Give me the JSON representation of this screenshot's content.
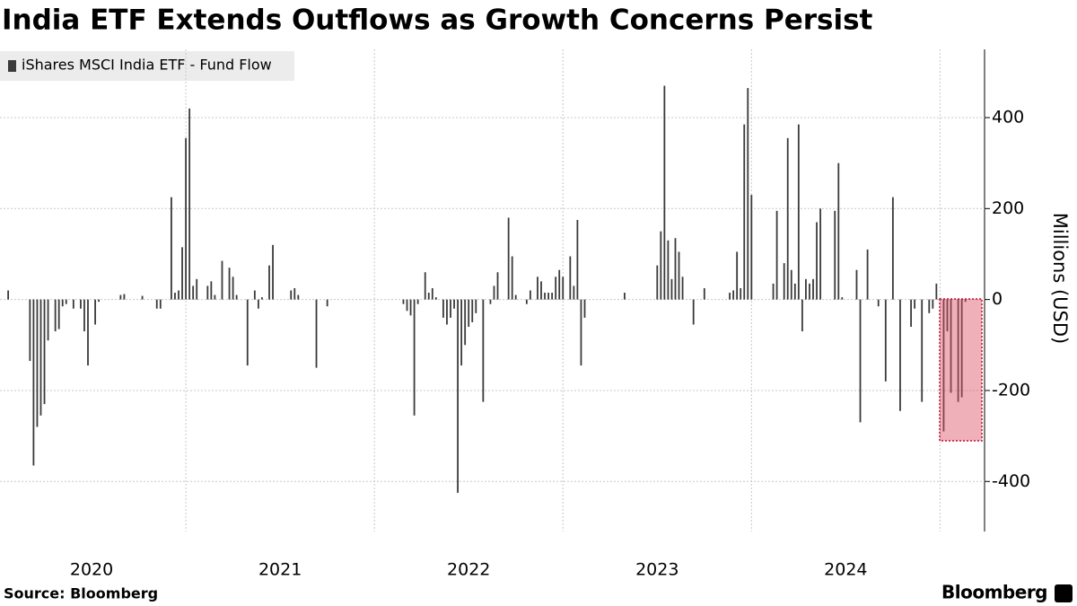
{
  "chart_data": {
    "type": "bar",
    "title": "India ETF Extends Outflows as Growth Concerns Persist",
    "y_label": "Millions (USD)",
    "source": "Source:  Bloomberg",
    "brand": "Bloomberg",
    "series": [
      {
        "name": "iShares MSCI India ETF - Fund Flow",
        "color": "#3a3a3a",
        "values": [
          0,
          0,
          0,
          20,
          0,
          0,
          0,
          0,
          0,
          -135,
          -365,
          -280,
          -255,
          -230,
          -90,
          0,
          -70,
          -65,
          -15,
          -10,
          0,
          -20,
          0,
          -20,
          -70,
          -145,
          0,
          -55,
          -5,
          0,
          0,
          0,
          0,
          0,
          10,
          12,
          0,
          0,
          0,
          0,
          8,
          0,
          0,
          0,
          -20,
          -20,
          0,
          0,
          225,
          15,
          20,
          115,
          355,
          420,
          30,
          45,
          0,
          0,
          30,
          40,
          10,
          0,
          85,
          0,
          70,
          50,
          10,
          0,
          0,
          -145,
          0,
          20,
          -20,
          5,
          0,
          75,
          120,
          0,
          0,
          0,
          0,
          20,
          25,
          10,
          0,
          0,
          0,
          0,
          -150,
          0,
          0,
          -15,
          0,
          0,
          0,
          0,
          0,
          0,
          0,
          0,
          0,
          0,
          0,
          0,
          0,
          0,
          0,
          0,
          0,
          0,
          0,
          0,
          -10,
          -25,
          -35,
          -255,
          -10,
          0,
          60,
          15,
          25,
          5,
          0,
          -40,
          -55,
          -40,
          -20,
          -425,
          -145,
          -100,
          -60,
          -50,
          -30,
          0,
          -225,
          0,
          -10,
          30,
          60,
          0,
          0,
          180,
          95,
          10,
          0,
          0,
          -10,
          20,
          0,
          50,
          40,
          15,
          15,
          15,
          50,
          65,
          50,
          0,
          95,
          30,
          175,
          -145,
          -40,
          0,
          0,
          0,
          0,
          0,
          0,
          0,
          0,
          0,
          0,
          15,
          0,
          0,
          0,
          0,
          0,
          0,
          0,
          0,
          75,
          150,
          470,
          130,
          45,
          135,
          105,
          50,
          0,
          0,
          -55,
          0,
          0,
          25,
          0,
          0,
          0,
          0,
          0,
          0,
          15,
          20,
          105,
          25,
          385,
          465,
          230,
          0,
          0,
          0,
          0,
          0,
          35,
          195,
          0,
          80,
          355,
          65,
          35,
          385,
          -70,
          45,
          35,
          45,
          170,
          200,
          0,
          0,
          0,
          195,
          300,
          5,
          0,
          0,
          0,
          65,
          -270,
          0,
          110,
          0,
          0,
          -15,
          0,
          -180,
          0,
          225,
          0,
          -245,
          0,
          0,
          -60,
          -20,
          0,
          -225,
          0,
          -30,
          -20,
          35,
          0,
          -290,
          -70,
          -205,
          0,
          -225,
          -215,
          -5
        ]
      }
    ],
    "categories": [
      null,
      null,
      null,
      null,
      null,
      null,
      null,
      null,
      null,
      null,
      null,
      null,
      null,
      null,
      null,
      null,
      null,
      null,
      null,
      null,
      null,
      null,
      null,
      null,
      null,
      null,
      "2020",
      null,
      null,
      null,
      null,
      null,
      null,
      null,
      null,
      null,
      null,
      null,
      null,
      null,
      null,
      null,
      null,
      null,
      null,
      null,
      null,
      null,
      null,
      null,
      null,
      null,
      null,
      null,
      null,
      null,
      null,
      null,
      null,
      null,
      null,
      null,
      null,
      null,
      null,
      null,
      null,
      null,
      null,
      null,
      null,
      null,
      null,
      null,
      null,
      null,
      null,
      null,
      "2021",
      null,
      null,
      null,
      null,
      null,
      null,
      null,
      null,
      null,
      null,
      null,
      null,
      null,
      null,
      null,
      null,
      null,
      null,
      null,
      null,
      null,
      null,
      null,
      null,
      null,
      null,
      null,
      null,
      null,
      null,
      null,
      null,
      null,
      null,
      null,
      null,
      null,
      null,
      null,
      null,
      null,
      null,
      null,
      null,
      null,
      null,
      null,
      null,
      null,
      null,
      null,
      "2022",
      null,
      null,
      null,
      null,
      null,
      null,
      null,
      null,
      null,
      null,
      null,
      null,
      null,
      null,
      null,
      null,
      null,
      null,
      null,
      null,
      null,
      null,
      null,
      null,
      null,
      null,
      null,
      null,
      null,
      null,
      null,
      null,
      null,
      null,
      null,
      null,
      null,
      null,
      null,
      null,
      null,
      null,
      null,
      null,
      null,
      null,
      null,
      null,
      null,
      null,
      null,
      "2023",
      null,
      null,
      null,
      null,
      null,
      null,
      null,
      null,
      null,
      null,
      null,
      null,
      null,
      null,
      null,
      null,
      null,
      null,
      null,
      null,
      null,
      null,
      null,
      null,
      null,
      null,
      null,
      null,
      null,
      null,
      null,
      null,
      null,
      null,
      null,
      null,
      null,
      null,
      null,
      null,
      null,
      null,
      null,
      null,
      null,
      null,
      null,
      null,
      null,
      null,
      null,
      "2024",
      null,
      null,
      null,
      null,
      null,
      null,
      null,
      null,
      null,
      null,
      null,
      null,
      null,
      null,
      null,
      null,
      null,
      null,
      null,
      null,
      null,
      null,
      null,
      null,
      null,
      null,
      null,
      null,
      null,
      null,
      null,
      null,
      null
    ],
    "ylim": [
      -510,
      550
    ],
    "yticks": [
      -400,
      -200,
      0,
      200,
      400
    ],
    "grid": true
  }
}
